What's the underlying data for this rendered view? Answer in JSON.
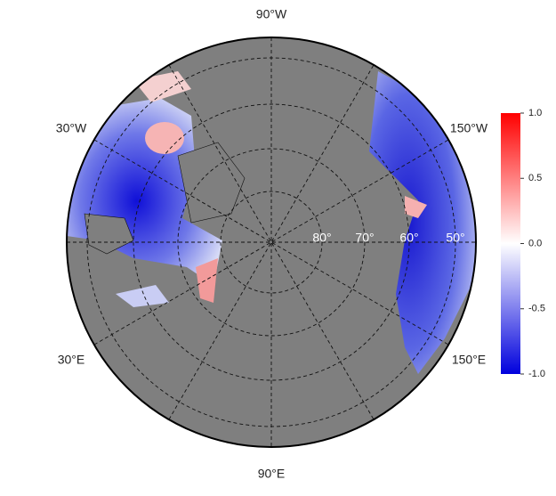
{
  "map": {
    "lon_labels": {
      "top": "90°W",
      "upper_left": "30°W",
      "upper_right": "150°W",
      "lower_left": "30°E",
      "lower_right": "150°E",
      "bottom": "90°E"
    },
    "lat_labels": [
      "80°",
      "70°",
      "60°",
      "50°"
    ],
    "colorbar": {
      "lim": [
        -1,
        1
      ],
      "ticks": [
        {
          "value": 1,
          "label": "1.0"
        },
        0.5,
        {
          "value": 0,
          "label": "0.0"
        },
        -0.5,
        {
          "value": -1,
          "label": "-1.0"
        }
      ]
    }
  }
}
